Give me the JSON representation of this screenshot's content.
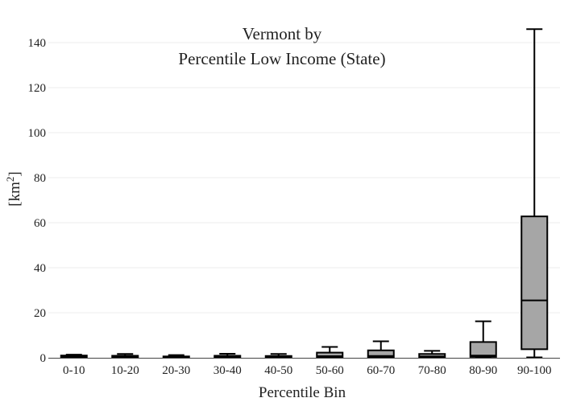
{
  "chart_data": {
    "type": "box",
    "title": [
      "Vermont  by",
      "Percentile Low Income (State)"
    ],
    "xlabel": "Percentile Bin",
    "ylabel": "[km",
    "ylabel_superscript": "2",
    "ylabel_close": "]",
    "ylim": [
      0,
      150
    ],
    "yticks": [
      0,
      20,
      40,
      60,
      80,
      100,
      120,
      140
    ],
    "grid": true,
    "box_color": "#a6a6a6",
    "categories": [
      "0-10",
      "10-20",
      "20-30",
      "30-40",
      "40-50",
      "50-60",
      "60-70",
      "70-80",
      "80-90",
      "90-100"
    ],
    "boxes": [
      {
        "min": 0.1,
        "q1": 0.2,
        "median": 0.5,
        "q3": 1.0,
        "max": 1.4
      },
      {
        "min": 0.1,
        "q1": 0.2,
        "median": 0.4,
        "q3": 0.9,
        "max": 1.7
      },
      {
        "min": 0.1,
        "q1": 0.2,
        "median": 0.3,
        "q3": 0.6,
        "max": 1.2
      },
      {
        "min": 0.1,
        "q1": 0.2,
        "median": 0.4,
        "q3": 0.9,
        "max": 1.8
      },
      {
        "min": 0.1,
        "q1": 0.2,
        "median": 0.4,
        "q3": 0.8,
        "max": 1.7
      },
      {
        "min": 0.1,
        "q1": 0.3,
        "median": 0.7,
        "q3": 2.3,
        "max": 4.8
      },
      {
        "min": 0.1,
        "q1": 0.3,
        "median": 0.8,
        "q3": 3.3,
        "max": 7.3
      },
      {
        "min": 0.1,
        "q1": 0.3,
        "median": 0.6,
        "q3": 1.7,
        "max": 3.1
      },
      {
        "min": 0.1,
        "q1": 0.4,
        "median": 1.0,
        "q3": 7.0,
        "max": 16.2
      },
      {
        "min": 0.2,
        "q1": 3.8,
        "median": 25.5,
        "q3": 62.8,
        "max": 146.0
      }
    ]
  }
}
